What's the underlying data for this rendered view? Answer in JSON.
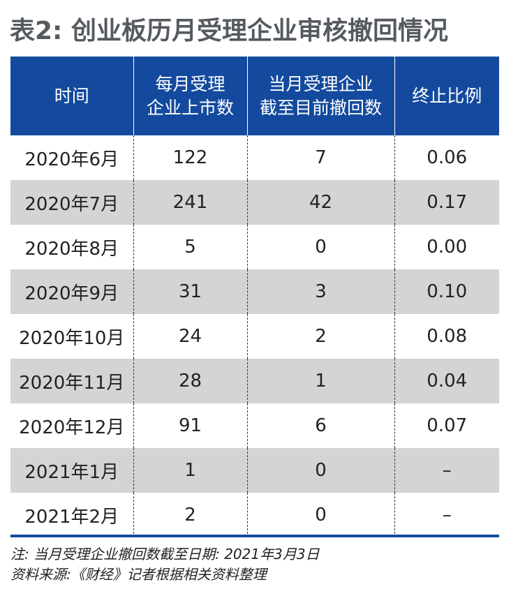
{
  "title": "表2: 创业板历月受理企业审核撤回情况",
  "table": {
    "headers": [
      "时间",
      "每月受理\n企业上市数",
      "当月受理企业\n截至目前撤回数",
      "终止比例"
    ],
    "rows": [
      [
        "2020年6月",
        "122",
        "7",
        "0.06"
      ],
      [
        "2020年7月",
        "241",
        "42",
        "0.17"
      ],
      [
        "2020年8月",
        "5",
        "0",
        "0.00"
      ],
      [
        "2020年9月",
        "31",
        "3",
        "0.10"
      ],
      [
        "2020年10月",
        "24",
        "2",
        "0.08"
      ],
      [
        "2020年11月",
        "28",
        "1",
        "0.04"
      ],
      [
        "2020年12月",
        "91",
        "6",
        "0.07"
      ],
      [
        "2021年1月",
        "1",
        "0",
        "–"
      ],
      [
        "2021年2月",
        "2",
        "0",
        "–"
      ]
    ]
  },
  "notes": {
    "note": "注: 当月受理企业撤回数截至日期: 2021年3月3日",
    "source": "资料来源:《财经》记者根据相关资料整理"
  },
  "colors": {
    "header_bg": "#134a9e",
    "shaded_row": "#d3d4d6",
    "title": "#555a60"
  }
}
